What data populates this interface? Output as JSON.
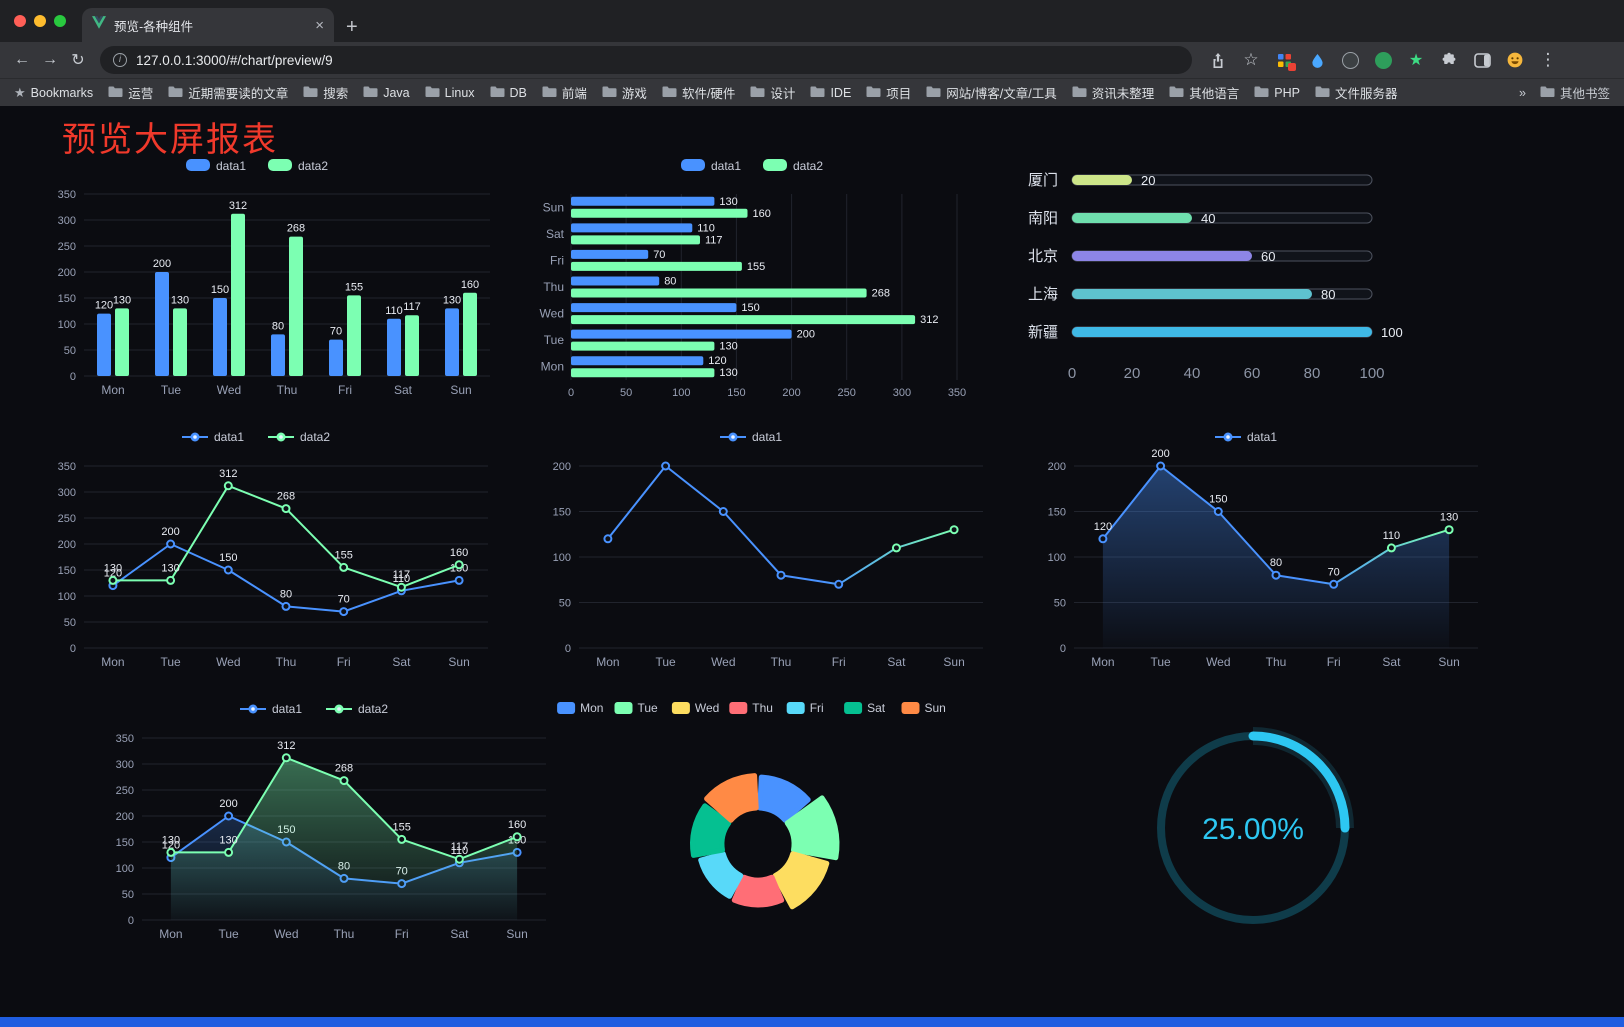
{
  "browser": {
    "tab": {
      "title": "预览-各种组件",
      "close": "×",
      "new_tab": "+"
    },
    "nav": {
      "back": "←",
      "forward": "→",
      "reload": "↻"
    },
    "address": {
      "url": "127.0.0.1:3000/#/chart/preview/9"
    },
    "menu_icon": "⋮",
    "bookmarks_bar": {
      "first": "Bookmarks",
      "folders": [
        "运营",
        "近期需要读的文章",
        "搜索",
        "Java",
        "Linux",
        "DB",
        "前端",
        "游戏",
        "软件/硬件",
        "设计",
        "IDE",
        "项目",
        "网站/博客/文章/工具",
        "资讯未整理",
        "其他语言",
        "PHP",
        "文件服务器"
      ],
      "overflow": "»",
      "other": "其他书签"
    }
  },
  "page": {
    "title": "预览大屏报表"
  },
  "chart_data": [
    {
      "type": "bar",
      "categories": [
        "Mon",
        "Tue",
        "Wed",
        "Thu",
        "Fri",
        "Sat",
        "Sun"
      ],
      "series": [
        {
          "name": "data1",
          "color": "#4992ff",
          "values": [
            120,
            200,
            150,
            80,
            70,
            110,
            130
          ]
        },
        {
          "name": "data2",
          "color": "#7cffb2",
          "values": [
            130,
            130,
            312,
            268,
            155,
            117,
            160
          ]
        }
      ],
      "ylim": [
        0,
        350
      ],
      "ytick_step": 50,
      "value_labels": true,
      "legend_position": "top",
      "grid": true
    },
    {
      "type": "barh",
      "categories": [
        "Mon",
        "Tue",
        "Wed",
        "Thu",
        "Fri",
        "Sat",
        "Sun"
      ],
      "series": [
        {
          "name": "data1",
          "color": "#4992ff",
          "values": [
            120,
            200,
            150,
            80,
            70,
            110,
            130
          ]
        },
        {
          "name": "data2",
          "color": "#7cffb2",
          "values": [
            130,
            130,
            312,
            268,
            155,
            117,
            160
          ]
        }
      ],
      "xlim": [
        0,
        350
      ],
      "xtick_step": 50,
      "value_labels": true,
      "legend_position": "top",
      "grid": true
    },
    {
      "type": "progress_bars",
      "max": 100,
      "items": [
        {
          "label": "厦门",
          "value": 20,
          "color": "#cde689"
        },
        {
          "label": "南阳",
          "value": 40,
          "color": "#6fdfae"
        },
        {
          "label": "北京",
          "value": 60,
          "color": "#8d85e6"
        },
        {
          "label": "上海",
          "value": 80,
          "color": "#5ec2cf"
        },
        {
          "label": "新疆",
          "value": 100,
          "color": "#3fb9e6"
        }
      ],
      "xticks": [
        0,
        20,
        40,
        60,
        80,
        100
      ]
    },
    {
      "type": "line",
      "categories": [
        "Mon",
        "Tue",
        "Wed",
        "Thu",
        "Fri",
        "Sat",
        "Sun"
      ],
      "series": [
        {
          "name": "data1",
          "color": "#4992ff",
          "values": [
            120,
            200,
            150,
            80,
            70,
            110,
            130
          ]
        },
        {
          "name": "data2",
          "color": "#7cffb2",
          "values": [
            130,
            130,
            312,
            268,
            155,
            117,
            160
          ]
        }
      ],
      "ylim": [
        0,
        350
      ],
      "ytick_step": 50,
      "value_labels": true,
      "legend_position": "top",
      "grid": true
    },
    {
      "type": "line",
      "categories": [
        "Mon",
        "Tue",
        "Wed",
        "Thu",
        "Fri",
        "Sat",
        "Sun"
      ],
      "series": [
        {
          "name": "data1",
          "color": "#4992ff",
          "gradient": [
            "#4992ff",
            "#7cffb2"
          ],
          "values": [
            120,
            200,
            150,
            80,
            70,
            110,
            130
          ]
        }
      ],
      "ylim": [
        0,
        200
      ],
      "ytick_step": 50,
      "value_labels": false,
      "legend_position": "top",
      "grid": true
    },
    {
      "type": "line",
      "categories": [
        "Mon",
        "Tue",
        "Wed",
        "Thu",
        "Fri",
        "Sat",
        "Sun"
      ],
      "series": [
        {
          "name": "data1",
          "color": "#4992ff",
          "gradient": [
            "#4992ff",
            "#7cffb2"
          ],
          "area": true,
          "values": [
            120,
            200,
            150,
            80,
            70,
            110,
            130
          ]
        }
      ],
      "ylim": [
        0,
        200
      ],
      "ytick_step": 50,
      "value_labels": true,
      "legend_position": "top",
      "grid": true
    },
    {
      "type": "line",
      "categories": [
        "Mon",
        "Tue",
        "Wed",
        "Thu",
        "Fri",
        "Sat",
        "Sun"
      ],
      "series": [
        {
          "name": "data1",
          "color": "#4992ff",
          "area": true,
          "values": [
            120,
            200,
            150,
            80,
            70,
            110,
            130
          ]
        },
        {
          "name": "data2",
          "color": "#7cffb2",
          "area": true,
          "values": [
            130,
            130,
            312,
            268,
            155,
            117,
            160
          ]
        }
      ],
      "ylim": [
        0,
        350
      ],
      "ytick_step": 50,
      "value_labels": true,
      "legend_position": "top",
      "grid": true
    },
    {
      "type": "pie",
      "subtype": "rose-donut",
      "categories": [
        "Mon",
        "Tue",
        "Wed",
        "Thu",
        "Fri",
        "Sat",
        "Sun"
      ],
      "values": [
        120,
        200,
        150,
        80,
        70,
        110,
        130
      ],
      "colors": [
        "#4992ff",
        "#7cffb2",
        "#fddd60",
        "#ff6e76",
        "#58d9f9",
        "#05c091",
        "#ff8a45"
      ],
      "legend_position": "top"
    },
    {
      "type": "gauge",
      "value": 25,
      "max": 100,
      "label": "25.00%",
      "color": "#2dc7f2",
      "track_color": "#0f3c4a"
    }
  ]
}
